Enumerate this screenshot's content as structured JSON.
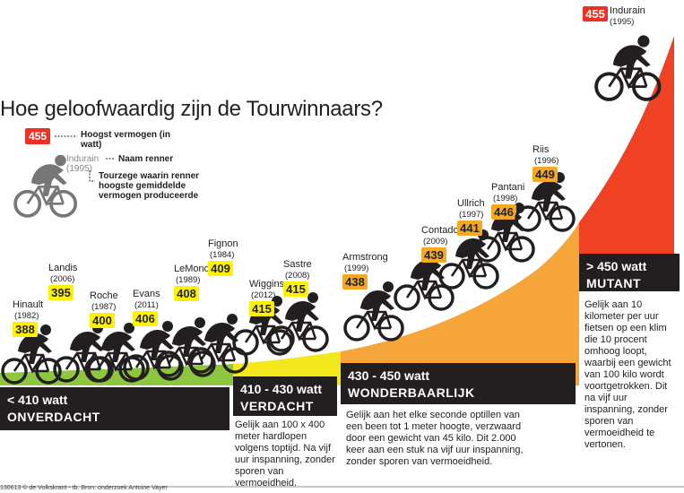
{
  "title": "Hoe geloofwaardig zijn de Tourwinnaars?",
  "legend": {
    "value": "455",
    "name": "Indurain",
    "year": "(1995)",
    "note_value": "Hoogst vermogen (in watt)",
    "note_name": "Naam renner",
    "note_year": "Tourzege waarin renner hoogste gemiddelde vermogen produceerde"
  },
  "colors": {
    "green": "#8dc63f",
    "yellow": "#f2e81d",
    "orange": "#f6a53a",
    "red": "#ef4123",
    "dark": "#231f20",
    "label_yellow": "#fff200",
    "label_orange": "#f7a823",
    "label_red": "#ed3124"
  },
  "categories": [
    {
      "range": "< 410 watt",
      "label": "ONVERDACHT",
      "description": ""
    },
    {
      "range": "410 - 430 watt",
      "label": "VERDACHT",
      "description": "Gelijk aan 100 x 400 meter hardlopen volgens toptijd. Na vijf uur inspanning, zonder sporen van vermoeidheid."
    },
    {
      "range": "430 - 450 watt",
      "label": "WONDERBAARLIJK",
      "description": "Gelijk aan het elke seconde optillen van een been tot 1 meter hoogte, verzwaard door een gewicht van 45 kilo. Dit 2.000 keer aan een stuk na vijf uur inspanning, zonder sporen van vermoeidheid."
    },
    {
      "range": "> 450 watt",
      "label": "MUTANT",
      "description": "Gelijk aan 10 kilometer per uur fietsen op een klim die 10 procent omhoog loopt, waarbij een gewicht van 100 kilo wordt voortgetrokken. Dit na vijf uur inspanning, zonder sporen van vermoeidheid te vertonen."
    }
  ],
  "chart_data": {
    "type": "bar",
    "title": "Hoe geloofwaardig zijn de Tourwinnaars?",
    "unit": "watt",
    "riders": [
      {
        "name": "Hinault",
        "year": "(1982)",
        "value": 388
      },
      {
        "name": "Landis",
        "year": "(2006)",
        "value": 395
      },
      {
        "name": "Roche",
        "year": "(1987)",
        "value": 400
      },
      {
        "name": "Evans",
        "year": "(2011)",
        "value": 406
      },
      {
        "name": "LeMond",
        "year": "(1989)",
        "value": 408
      },
      {
        "name": "Fignon",
        "year": "(1984)",
        "value": 409
      },
      {
        "name": "Wiggins",
        "year": "(2012)",
        "value": 415
      },
      {
        "name": "Sastre",
        "year": "(2008)",
        "value": 415
      },
      {
        "name": "Armstrong",
        "year": "(1999)",
        "value": 438
      },
      {
        "name": "Contador",
        "year": "(2009)",
        "value": 439
      },
      {
        "name": "Ullrich",
        "year": "(1997)",
        "value": 441
      },
      {
        "name": "Pantani",
        "year": "(1998)",
        "value": 446
      },
      {
        "name": "Riis",
        "year": "(1996)",
        "value": 449
      },
      {
        "name": "Indurain",
        "year": "(1995)",
        "value": 455
      }
    ]
  },
  "footer": "130613 © de Volkskrant - tb. Bron: onderzoek Antoine Vayer"
}
